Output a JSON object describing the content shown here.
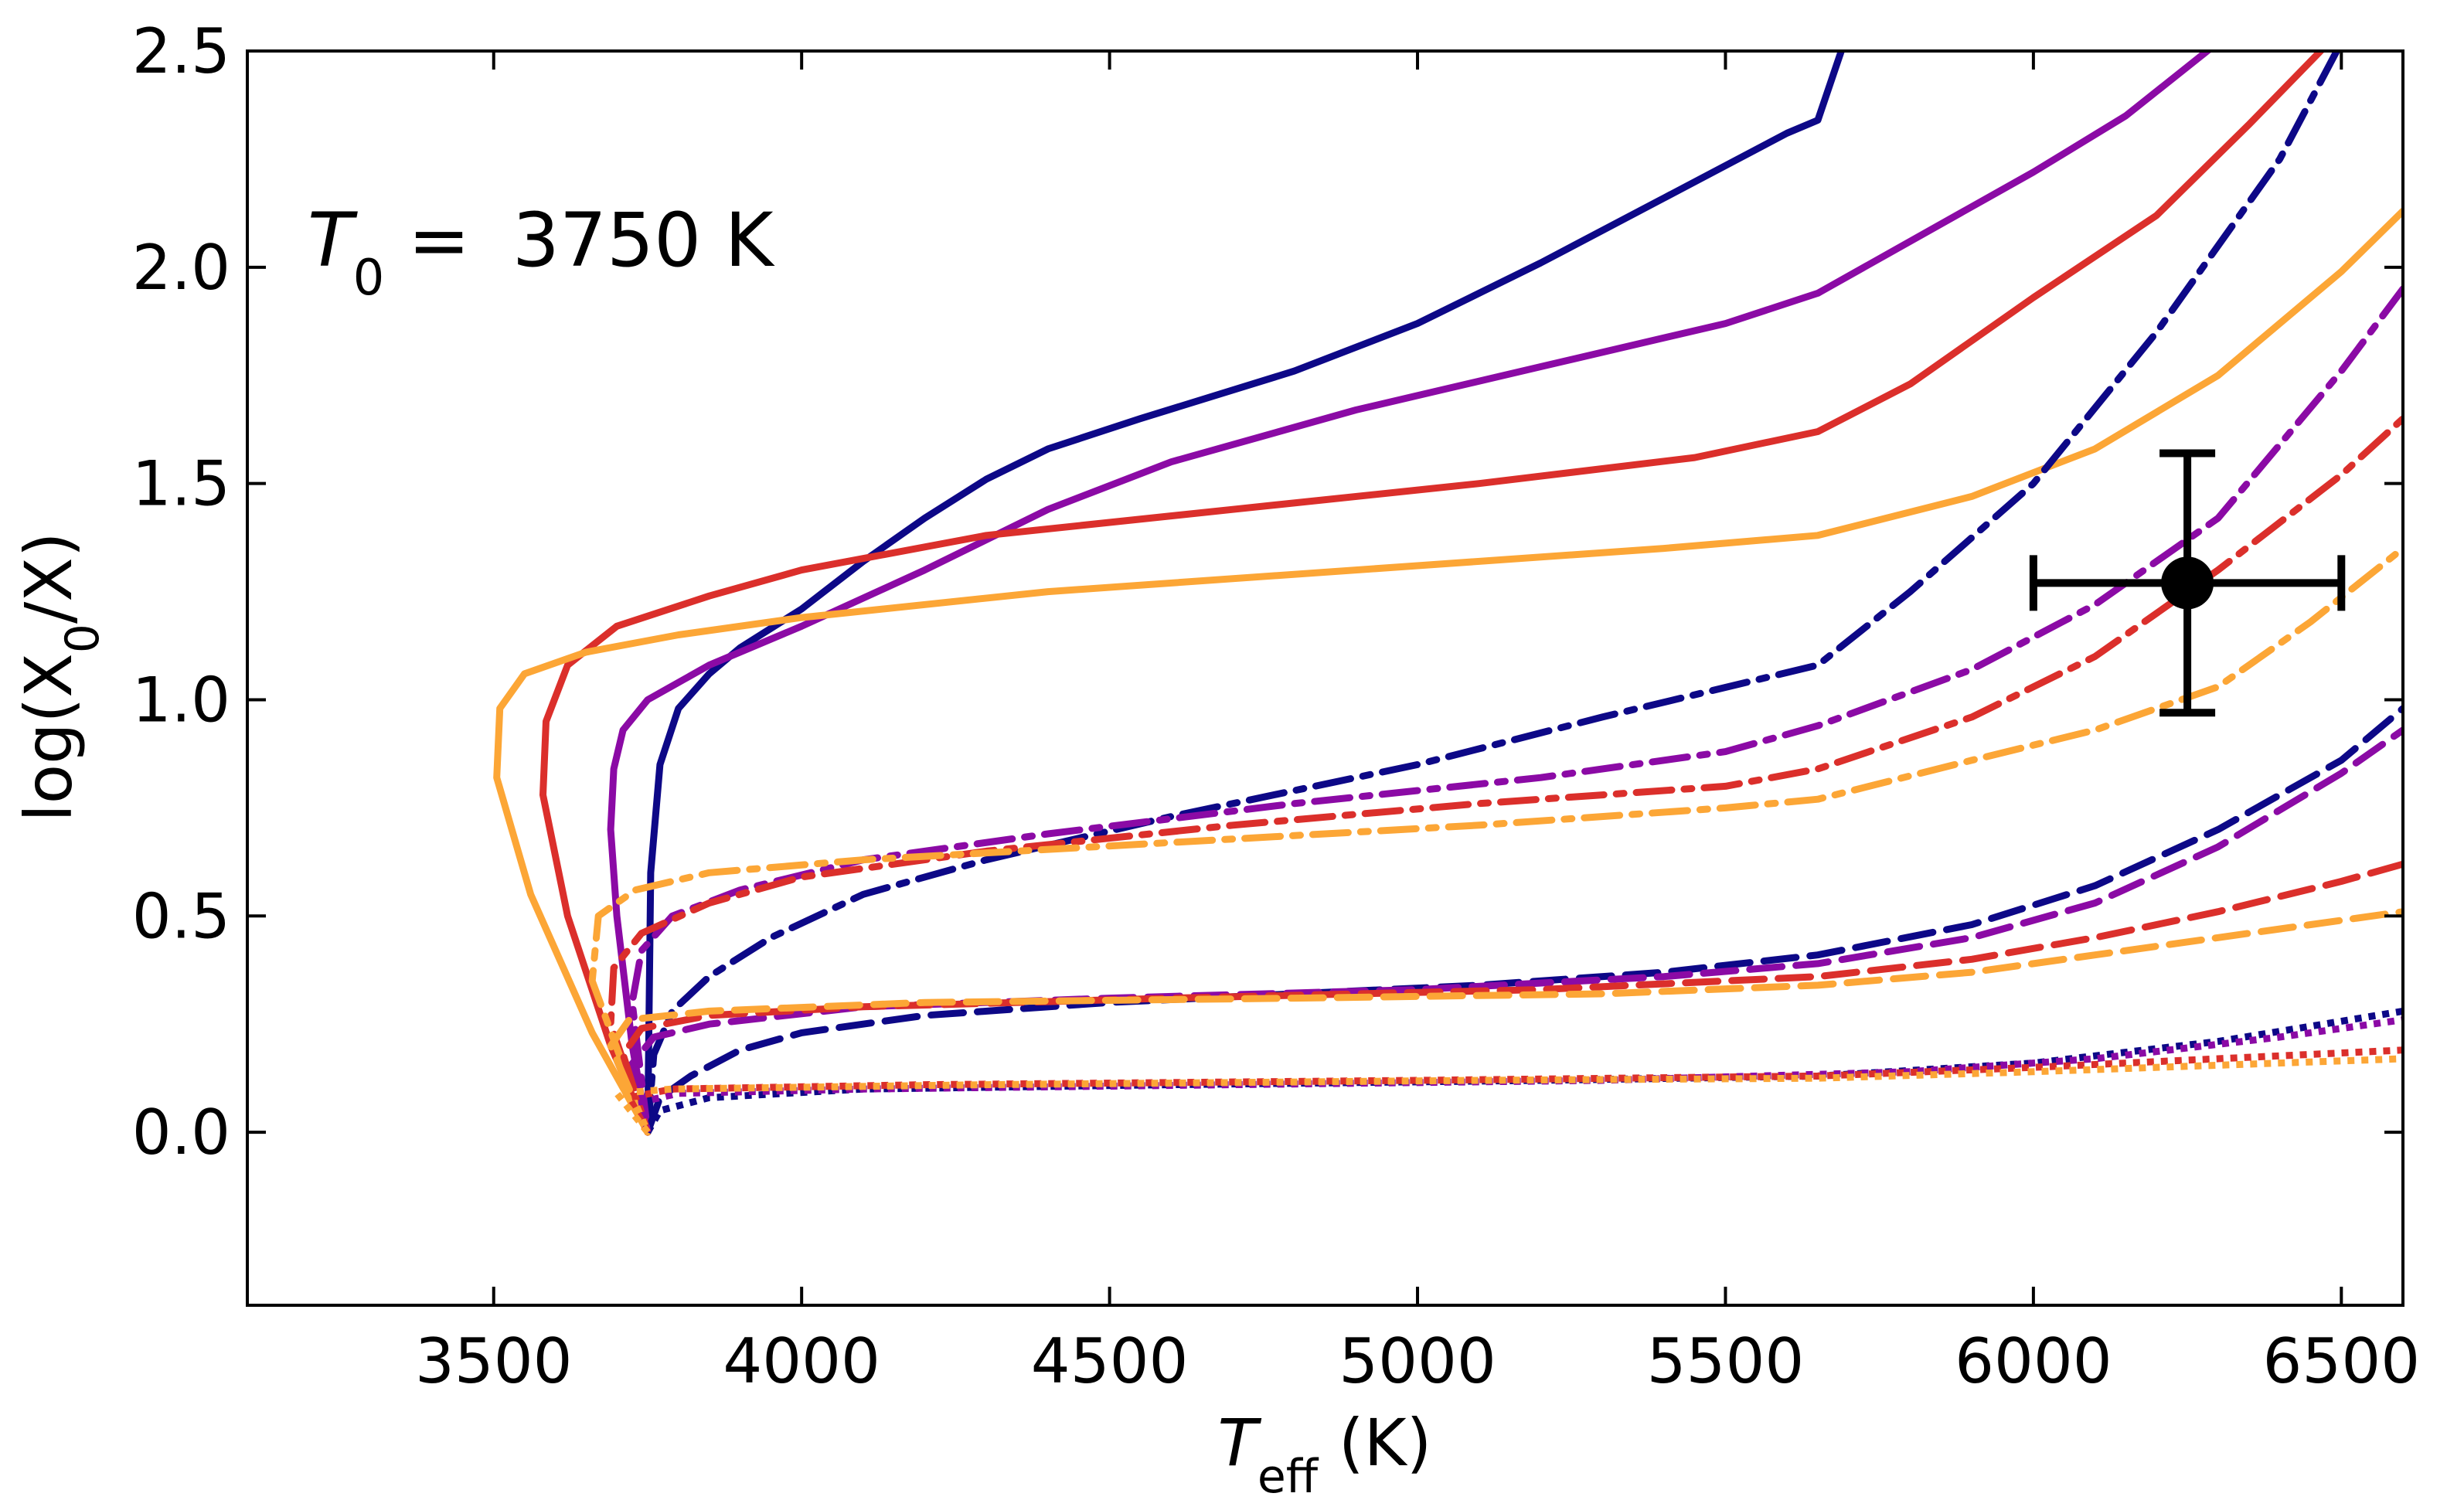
{
  "chart_data": {
    "type": "line",
    "title": "",
    "annotation": {
      "var": "T",
      "sub": "0",
      "eq": " = ",
      "value": "3750 K"
    },
    "xlabel": {
      "var": "T",
      "sub": "eff",
      "unit": " (K)"
    },
    "ylabel": {
      "pre": "log(X",
      "sub": "0",
      "post": "/X)"
    },
    "xlim": [
      3100,
      6600
    ],
    "ylim": [
      -0.4,
      2.5
    ],
    "xticks": [
      3500,
      4000,
      4500,
      5000,
      5500,
      6000,
      6500
    ],
    "xtick_labels": [
      "3500",
      "4000",
      "4500",
      "5000",
      "5500",
      "6000",
      "6500"
    ],
    "yticks": [
      0.0,
      0.5,
      1.0,
      1.5,
      2.0,
      2.5
    ],
    "ytick_labels": [
      "0.0",
      "0.5",
      "1.0",
      "1.5",
      "2.0",
      "2.5"
    ],
    "colors": {
      "navy": "#0d0887",
      "purple": "#8b0aa5",
      "red": "#db2f2b",
      "orange": "#fca636",
      "black": "#000000"
    },
    "series": [
      {
        "name": "navy-solid",
        "color": "navy",
        "style": "solid",
        "points": [
          [
            3750,
            0
          ],
          [
            3755,
            0.6
          ],
          [
            3770,
            0.85
          ],
          [
            3800,
            0.98
          ],
          [
            3850,
            1.06
          ],
          [
            3900,
            1.12
          ],
          [
            4000,
            1.21
          ],
          [
            4100,
            1.32
          ],
          [
            4200,
            1.42
          ],
          [
            4300,
            1.51
          ],
          [
            4400,
            1.58
          ],
          [
            4550,
            1.65
          ],
          [
            4800,
            1.76
          ],
          [
            5000,
            1.87
          ],
          [
            5200,
            2.01
          ],
          [
            5400,
            2.16
          ],
          [
            5600,
            2.31
          ],
          [
            5650,
            2.34
          ],
          [
            5700,
            2.55
          ]
        ]
      },
      {
        "name": "purple-solid",
        "color": "purple",
        "style": "solid",
        "points": [
          [
            3750,
            0
          ],
          [
            3725,
            0.2
          ],
          [
            3700,
            0.5
          ],
          [
            3690,
            0.7
          ],
          [
            3695,
            0.84
          ],
          [
            3710,
            0.93
          ],
          [
            3750,
            1.0
          ],
          [
            3850,
            1.08
          ],
          [
            4000,
            1.17
          ],
          [
            4200,
            1.3
          ],
          [
            4400,
            1.44
          ],
          [
            4600,
            1.55
          ],
          [
            4900,
            1.67
          ],
          [
            5200,
            1.77
          ],
          [
            5500,
            1.87
          ],
          [
            5650,
            1.94
          ],
          [
            6000,
            2.22
          ],
          [
            6150,
            2.35
          ],
          [
            6300,
            2.52
          ]
        ]
      },
      {
        "name": "red-solid",
        "color": "red",
        "style": "solid",
        "points": [
          [
            3750,
            0
          ],
          [
            3690,
            0.2
          ],
          [
            3620,
            0.5
          ],
          [
            3580,
            0.78
          ],
          [
            3585,
            0.95
          ],
          [
            3620,
            1.08
          ],
          [
            3700,
            1.17
          ],
          [
            3850,
            1.24
          ],
          [
            4000,
            1.3
          ],
          [
            4300,
            1.38
          ],
          [
            4700,
            1.44
          ],
          [
            5100,
            1.5
          ],
          [
            5450,
            1.56
          ],
          [
            5650,
            1.62
          ],
          [
            5800,
            1.73
          ],
          [
            6000,
            1.93
          ],
          [
            6200,
            2.12
          ],
          [
            6350,
            2.33
          ],
          [
            6480,
            2.52
          ]
        ]
      },
      {
        "name": "orange-solid",
        "color": "orange",
        "style": "solid",
        "points": [
          [
            3750,
            0
          ],
          [
            3660,
            0.23
          ],
          [
            3560,
            0.55
          ],
          [
            3505,
            0.82
          ],
          [
            3510,
            0.98
          ],
          [
            3550,
            1.06
          ],
          [
            3650,
            1.11
          ],
          [
            3800,
            1.15
          ],
          [
            4000,
            1.19
          ],
          [
            4400,
            1.25
          ],
          [
            5000,
            1.31
          ],
          [
            5400,
            1.35
          ],
          [
            5650,
            1.38
          ],
          [
            5900,
            1.47
          ],
          [
            6100,
            1.58
          ],
          [
            6300,
            1.75
          ],
          [
            6500,
            1.99
          ],
          [
            6600,
            2.13
          ]
        ]
      },
      {
        "name": "navy-dashdot",
        "color": "navy",
        "style": "dashdot",
        "points": [
          [
            3750,
            0
          ],
          [
            3760,
            0.18
          ],
          [
            3790,
            0.28
          ],
          [
            3850,
            0.36
          ],
          [
            3950,
            0.45
          ],
          [
            4100,
            0.55
          ],
          [
            4300,
            0.63
          ],
          [
            4600,
            0.73
          ],
          [
            5000,
            0.85
          ],
          [
            5300,
            0.96
          ],
          [
            5650,
            1.08
          ],
          [
            5800,
            1.25
          ],
          [
            6000,
            1.5
          ],
          [
            6200,
            1.85
          ],
          [
            6400,
            2.25
          ],
          [
            6500,
            2.52
          ]
        ]
      },
      {
        "name": "purple-dashdot",
        "color": "purple",
        "style": "dashdot",
        "points": [
          [
            3750,
            0
          ],
          [
            3725,
            0.3
          ],
          [
            3740,
            0.42
          ],
          [
            3790,
            0.5
          ],
          [
            3900,
            0.56
          ],
          [
            4100,
            0.63
          ],
          [
            4400,
            0.69
          ],
          [
            4800,
            0.76
          ],
          [
            5200,
            0.82
          ],
          [
            5500,
            0.88
          ],
          [
            5650,
            0.94
          ],
          [
            5900,
            1.07
          ],
          [
            6100,
            1.22
          ],
          [
            6300,
            1.42
          ],
          [
            6500,
            1.76
          ],
          [
            6600,
            1.95
          ]
        ]
      },
      {
        "name": "red-dashdot",
        "color": "red",
        "style": "dashdot",
        "points": [
          [
            3750,
            0
          ],
          [
            3690,
            0.25
          ],
          [
            3695,
            0.38
          ],
          [
            3740,
            0.46
          ],
          [
            3850,
            0.53
          ],
          [
            4000,
            0.59
          ],
          [
            4300,
            0.65
          ],
          [
            4700,
            0.71
          ],
          [
            5100,
            0.76
          ],
          [
            5500,
            0.8
          ],
          [
            5650,
            0.84
          ],
          [
            5900,
            0.96
          ],
          [
            6100,
            1.1
          ],
          [
            6300,
            1.3
          ],
          [
            6500,
            1.52
          ],
          [
            6600,
            1.65
          ]
        ]
      },
      {
        "name": "orange-dashdot",
        "color": "orange",
        "style": "dashdot",
        "points": [
          [
            3750,
            0
          ],
          [
            3660,
            0.35
          ],
          [
            3670,
            0.5
          ],
          [
            3730,
            0.56
          ],
          [
            3850,
            0.6
          ],
          [
            4100,
            0.63
          ],
          [
            4600,
            0.67
          ],
          [
            5100,
            0.71
          ],
          [
            5500,
            0.75
          ],
          [
            5650,
            0.77
          ],
          [
            5900,
            0.86
          ],
          [
            6100,
            0.93
          ],
          [
            6300,
            1.03
          ],
          [
            6450,
            1.18
          ],
          [
            6600,
            1.35
          ]
        ]
      },
      {
        "name": "navy-dashed",
        "color": "navy",
        "style": "dashed",
        "points": [
          [
            3750,
            0
          ],
          [
            3770,
            0.08
          ],
          [
            3820,
            0.13
          ],
          [
            3900,
            0.19
          ],
          [
            4000,
            0.23
          ],
          [
            4200,
            0.27
          ],
          [
            4500,
            0.3
          ],
          [
            4800,
            0.32
          ],
          [
            5100,
            0.34
          ],
          [
            5400,
            0.37
          ],
          [
            5650,
            0.41
          ],
          [
            5900,
            0.48
          ],
          [
            6100,
            0.57
          ],
          [
            6300,
            0.7
          ],
          [
            6500,
            0.86
          ],
          [
            6600,
            0.98
          ]
        ]
      },
      {
        "name": "purple-dashed",
        "color": "purple",
        "style": "dashed",
        "points": [
          [
            3750,
            0
          ],
          [
            3720,
            0.15
          ],
          [
            3760,
            0.22
          ],
          [
            3850,
            0.25
          ],
          [
            4100,
            0.29
          ],
          [
            4500,
            0.31
          ],
          [
            5000,
            0.33
          ],
          [
            5400,
            0.36
          ],
          [
            5650,
            0.39
          ],
          [
            5900,
            0.45
          ],
          [
            6100,
            0.53
          ],
          [
            6300,
            0.66
          ],
          [
            6500,
            0.83
          ],
          [
            6600,
            0.93
          ]
        ]
      },
      {
        "name": "red-dashed",
        "color": "red",
        "style": "dashed",
        "points": [
          [
            3750,
            0
          ],
          [
            3710,
            0.18
          ],
          [
            3740,
            0.24
          ],
          [
            3850,
            0.27
          ],
          [
            4100,
            0.29
          ],
          [
            4600,
            0.31
          ],
          [
            5200,
            0.33
          ],
          [
            5650,
            0.36
          ],
          [
            5900,
            0.4
          ],
          [
            6100,
            0.45
          ],
          [
            6300,
            0.51
          ],
          [
            6500,
            0.58
          ],
          [
            6600,
            0.62
          ]
        ]
      },
      {
        "name": "orange-dashed",
        "color": "orange",
        "style": "dashed",
        "points": [
          [
            3750,
            0
          ],
          [
            3690,
            0.2
          ],
          [
            3720,
            0.26
          ],
          [
            3850,
            0.28
          ],
          [
            4200,
            0.3
          ],
          [
            4800,
            0.31
          ],
          [
            5300,
            0.32
          ],
          [
            5650,
            0.34
          ],
          [
            5900,
            0.37
          ],
          [
            6100,
            0.41
          ],
          [
            6300,
            0.45
          ],
          [
            6500,
            0.49
          ],
          [
            6600,
            0.51
          ]
        ]
      },
      {
        "name": "navy-dotted",
        "color": "navy",
        "style": "dotted",
        "points": [
          [
            3750,
            0
          ],
          [
            3770,
            0.05
          ],
          [
            3850,
            0.08
          ],
          [
            4100,
            0.1
          ],
          [
            4600,
            0.11
          ],
          [
            5200,
            0.12
          ],
          [
            5650,
            0.13
          ],
          [
            6000,
            0.16
          ],
          [
            6300,
            0.21
          ],
          [
            6600,
            0.28
          ]
        ]
      },
      {
        "name": "purple-dotted",
        "color": "purple",
        "style": "dotted",
        "points": [
          [
            3750,
            0
          ],
          [
            3740,
            0.07
          ],
          [
            3800,
            0.09
          ],
          [
            4100,
            0.1
          ],
          [
            4700,
            0.11
          ],
          [
            5300,
            0.12
          ],
          [
            5800,
            0.14
          ],
          [
            6100,
            0.17
          ],
          [
            6400,
            0.22
          ],
          [
            6600,
            0.26
          ]
        ]
      },
      {
        "name": "red-dotted",
        "color": "red",
        "style": "dotted",
        "points": [
          [
            3750,
            0
          ],
          [
            3720,
            0.08
          ],
          [
            3790,
            0.1
          ],
          [
            4200,
            0.11
          ],
          [
            5000,
            0.12
          ],
          [
            5650,
            0.13
          ],
          [
            6000,
            0.15
          ],
          [
            6300,
            0.17
          ],
          [
            6600,
            0.19
          ]
        ]
      },
      {
        "name": "orange-dotted",
        "color": "orange",
        "style": "dotted",
        "points": [
          [
            3750,
            0
          ],
          [
            3700,
            0.09
          ],
          [
            3790,
            0.1
          ],
          [
            4300,
            0.11
          ],
          [
            5100,
            0.12
          ],
          [
            5650,
            0.125
          ],
          [
            6000,
            0.14
          ],
          [
            6300,
            0.155
          ],
          [
            6600,
            0.17
          ]
        ]
      }
    ],
    "data_point": {
      "x": 6250,
      "y": 1.27,
      "xerr": 250,
      "yerr": 0.3,
      "color": "black"
    }
  }
}
